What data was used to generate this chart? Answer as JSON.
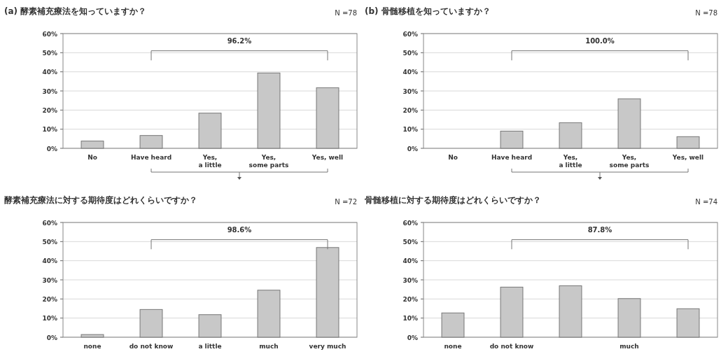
{
  "chart_data": [
    {
      "type": "bar",
      "title": "(a) 酵素補充療法を知っていますか？",
      "categories": [
        "No",
        "Have heard",
        "Yes,\na little",
        "Yes,\nsome parts",
        "Yes, well"
      ],
      "values": [
        3.8,
        6.7,
        18.4,
        39.4,
        31.7
      ],
      "color": "#c8c8c8",
      "ylim": [
        0,
        60
      ],
      "yticks": [
        {
          "value": 0,
          "label": "0%"
        },
        {
          "value": 10,
          "label": "10%"
        },
        {
          "value": 20,
          "label": "20%"
        },
        {
          "value": 30,
          "label": "30%"
        },
        {
          "value": 40,
          "label": "40%"
        },
        {
          "value": 50,
          "label": "50%"
        },
        {
          "value": 60,
          "label": "60%"
        }
      ],
      "grid": "y",
      "annotations": [
        "N =78",
        "96.2%"
      ]
    },
    {
      "type": "bar",
      "title": "(b) 骨髄移植を知っていますか？",
      "categories": [
        "No",
        "Have heard",
        "Yes,\na little",
        "Yes,\nsome parts",
        "Yes, well"
      ],
      "values": [
        0,
        9.0,
        13.4,
        25.9,
        6.1
      ],
      "color": "#c8c8c8",
      "ylim": [
        0,
        60
      ],
      "yticks": [
        {
          "value": 0,
          "label": "0%"
        },
        {
          "value": 10,
          "label": "10%"
        },
        {
          "value": 20,
          "label": "20%"
        },
        {
          "value": 30,
          "label": "30%"
        },
        {
          "value": 40,
          "label": "40%"
        },
        {
          "value": 50,
          "label": "50%"
        },
        {
          "value": 60,
          "label": "60%"
        }
      ],
      "grid": "y",
      "annotations": [
        "N =78",
        "100.0%"
      ]
    },
    {
      "type": "bar",
      "title": "酵素補充療法に対する期待度はどれくらいですか？",
      "categories": [
        "none",
        "do not know",
        "a little",
        "much",
        "very much"
      ],
      "values": [
        1.4,
        14.5,
        11.8,
        24.6,
        46.9
      ],
      "color": "#c8c8c8",
      "ylim": [
        0,
        60
      ],
      "yticks": [
        {
          "value": 0,
          "label": "0%"
        },
        {
          "value": 10,
          "label": "10%"
        },
        {
          "value": 20,
          "label": "20%"
        },
        {
          "value": 30,
          "label": "30%"
        },
        {
          "value": 40,
          "label": "40%"
        },
        {
          "value": 50,
          "label": "50%"
        },
        {
          "value": 60,
          "label": "60%"
        }
      ],
      "grid": "y",
      "annotations": [
        "N =72",
        "98.6%"
      ]
    },
    {
      "type": "bar",
      "title": "骨髄移植に対する期待度はどれくらいですか？",
      "categories": [
        "none",
        "do not know",
        null,
        "much",
        null
      ],
      "values": [
        12.7,
        26.2,
        26.9,
        20.2,
        14.9
      ],
      "color": "#c8c8c8",
      "ylim": [
        0,
        60
      ],
      "yticks": [
        {
          "value": 0,
          "label": "0%"
        },
        {
          "value": 10,
          "label": "10%"
        },
        {
          "value": 20,
          "label": "20%"
        },
        {
          "value": 30,
          "label": "30%"
        },
        {
          "value": 40,
          "label": "40%"
        },
        {
          "value": 50,
          "label": "50%"
        },
        {
          "value": 60,
          "label": "60%"
        }
      ],
      "grid": "y",
      "annotations": [
        "N =74",
        "87.8%"
      ]
    }
  ]
}
